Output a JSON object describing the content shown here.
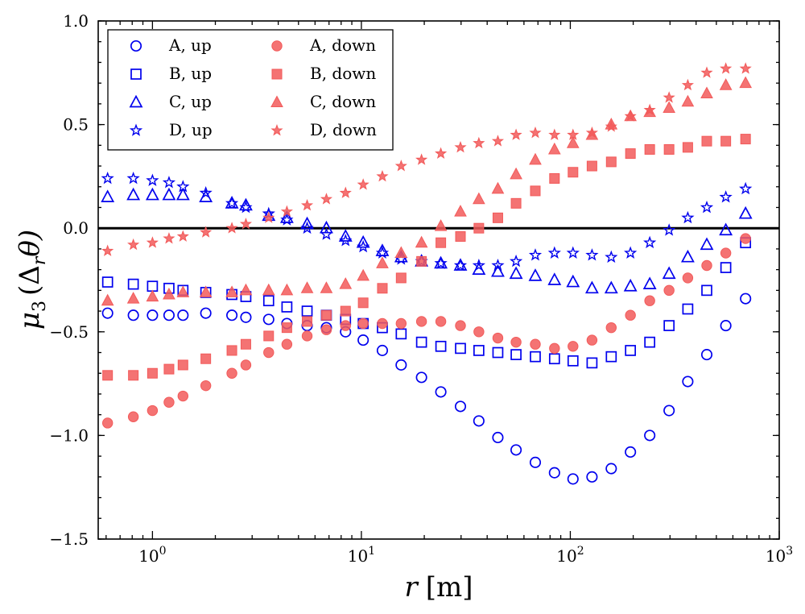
{
  "chart_data": {
    "type": "scatter",
    "x_scale": "log",
    "xlim": [
      0.55,
      1000
    ],
    "ylim": [
      -1.5,
      1.0
    ],
    "xlabel_italic": "r",
    "xlabel_unit": "[m]",
    "ylabel_mu": "μ",
    "ylabel_sub": "3",
    "ylabel_args": "(Δ",
    "ylabel_sub_r": "r",
    "ylabel_theta": "θ)",
    "x_ticks": [
      1,
      10,
      100,
      1000
    ],
    "x_tick_base": "10",
    "x_tick_exps": [
      "0",
      "1",
      "2",
      "3"
    ],
    "y_ticks": [
      -1.5,
      -1.0,
      -0.5,
      0.0,
      0.5,
      1.0
    ],
    "y_tick_labels": [
      "−1.5",
      "−1.0",
      "−0.5",
      "0.0",
      "0.5",
      "1.0"
    ],
    "reference_line_y": 0,
    "legend_position": "top-left",
    "colors": {
      "up": "#0000ee",
      "down": "#f25a5a"
    },
    "x": [
      0.61,
      0.81,
      1.0,
      1.2,
      1.4,
      1.8,
      2.4,
      2.8,
      3.6,
      4.4,
      5.5,
      6.8,
      8.4,
      10.2,
      12.6,
      15.5,
      19.4,
      24,
      29.8,
      36.5,
      45,
      55,
      68,
      84,
      103,
      127,
      157,
      194,
      240,
      297,
      365,
      450,
      555,
      690
    ],
    "series": [
      {
        "name": "A, up",
        "group": "up",
        "marker": "circle",
        "values": [
          -0.41,
          -0.42,
          -0.42,
          -0.42,
          -0.42,
          -0.41,
          -0.42,
          -0.43,
          -0.44,
          -0.46,
          -0.47,
          -0.48,
          -0.5,
          -0.54,
          -0.59,
          -0.66,
          -0.72,
          -0.79,
          -0.86,
          -0.93,
          -1.01,
          -1.07,
          -1.13,
          -1.18,
          -1.21,
          -1.2,
          -1.16,
          -1.08,
          -1.0,
          -0.88,
          -0.74,
          -0.61,
          -0.47,
          -0.34
        ]
      },
      {
        "name": "B, up",
        "group": "up",
        "marker": "square",
        "values": [
          -0.26,
          -0.27,
          -0.28,
          -0.29,
          -0.3,
          -0.31,
          -0.32,
          -0.33,
          -0.35,
          -0.38,
          -0.4,
          -0.42,
          -0.44,
          -0.46,
          -0.48,
          -0.51,
          -0.55,
          -0.57,
          -0.58,
          -0.59,
          -0.6,
          -0.61,
          -0.62,
          -0.63,
          -0.64,
          -0.65,
          -0.62,
          -0.59,
          -0.55,
          -0.47,
          -0.39,
          -0.3,
          -0.19,
          -0.07
        ]
      },
      {
        "name": "C, up",
        "group": "up",
        "marker": "triangle",
        "values": [
          0.15,
          0.16,
          0.16,
          0.16,
          0.16,
          0.15,
          0.12,
          0.11,
          0.06,
          0.05,
          0.02,
          0.0,
          -0.04,
          -0.07,
          -0.11,
          -0.14,
          -0.16,
          -0.17,
          -0.18,
          -0.2,
          -0.21,
          -0.22,
          -0.23,
          -0.25,
          -0.26,
          -0.29,
          -0.29,
          -0.28,
          -0.27,
          -0.22,
          -0.14,
          -0.08,
          -0.01,
          0.07
        ]
      },
      {
        "name": "D, up",
        "group": "up",
        "marker": "star",
        "values": [
          0.24,
          0.24,
          0.23,
          0.22,
          0.2,
          0.17,
          0.12,
          0.1,
          0.07,
          0.04,
          0.0,
          -0.03,
          -0.06,
          -0.09,
          -0.12,
          -0.15,
          -0.16,
          -0.17,
          -0.18,
          -0.18,
          -0.18,
          -0.16,
          -0.13,
          -0.12,
          -0.12,
          -0.13,
          -0.14,
          -0.12,
          -0.07,
          -0.01,
          0.05,
          0.1,
          0.15,
          0.19
        ]
      },
      {
        "name": "A, down",
        "group": "down",
        "marker": "circle",
        "values": [
          -0.94,
          -0.91,
          -0.88,
          -0.84,
          -0.81,
          -0.76,
          -0.7,
          -0.66,
          -0.6,
          -0.56,
          -0.52,
          -0.49,
          -0.47,
          -0.46,
          -0.46,
          -0.46,
          -0.45,
          -0.45,
          -0.47,
          -0.5,
          -0.53,
          -0.55,
          -0.56,
          -0.58,
          -0.57,
          -0.54,
          -0.48,
          -0.42,
          -0.35,
          -0.3,
          -0.24,
          -0.18,
          -0.12,
          -0.05
        ]
      },
      {
        "name": "B, down",
        "group": "down",
        "marker": "square",
        "values": [
          -0.71,
          -0.71,
          -0.7,
          -0.68,
          -0.66,
          -0.63,
          -0.59,
          -0.56,
          -0.52,
          -0.48,
          -0.45,
          -0.42,
          -0.4,
          -0.36,
          -0.29,
          -0.24,
          -0.16,
          -0.07,
          -0.04,
          0.0,
          0.05,
          0.12,
          0.18,
          0.24,
          0.27,
          0.3,
          0.32,
          0.36,
          0.38,
          0.38,
          0.39,
          0.42,
          0.42,
          0.43
        ]
      },
      {
        "name": "C, down",
        "group": "down",
        "marker": "triangle",
        "values": [
          -0.35,
          -0.34,
          -0.33,
          -0.32,
          -0.31,
          -0.31,
          -0.31,
          -0.3,
          -0.3,
          -0.3,
          -0.29,
          -0.29,
          -0.27,
          -0.23,
          -0.17,
          -0.12,
          -0.07,
          0.01,
          0.08,
          0.14,
          0.19,
          0.26,
          0.33,
          0.38,
          0.41,
          0.45,
          0.5,
          0.54,
          0.56,
          0.58,
          0.61,
          0.65,
          0.69,
          0.7
        ]
      },
      {
        "name": "D, down",
        "group": "down",
        "marker": "star",
        "values": [
          -0.11,
          -0.08,
          -0.07,
          -0.05,
          -0.04,
          -0.02,
          0.0,
          0.02,
          0.05,
          0.08,
          0.11,
          0.14,
          0.17,
          0.21,
          0.25,
          0.3,
          0.33,
          0.36,
          0.39,
          0.41,
          0.42,
          0.45,
          0.46,
          0.45,
          0.45,
          0.46,
          0.49,
          0.54,
          0.57,
          0.63,
          0.69,
          0.75,
          0.77,
          0.77
        ]
      }
    ]
  }
}
